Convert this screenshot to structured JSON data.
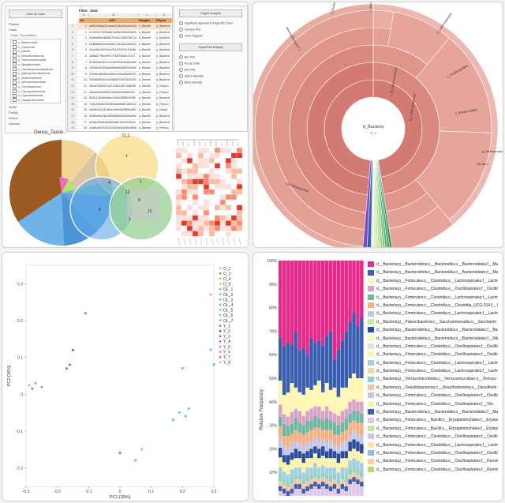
{
  "panel1": {
    "tree": {
      "view_all_label": "View All Data",
      "nodes_top": [
        "Phylum",
        "Class"
      ],
      "subhdr": [
        "Class",
        "TaxonName"
      ],
      "taxa": [
        "c_Bacteroidia",
        "c_Clostridia",
        "c_Bacilli",
        "c_Desulfovibrionia",
        "c_Saccharimonadia",
        "c_Negativicutes",
        "c_Gammaproteobacteria",
        "c_Alphaproteobacteria",
        "c_Actinobacteria",
        "c_Verrucomicrobiae",
        "c_Coriobacteriia",
        "c_Campylobacteria",
        "c_Cyanobacteriia",
        "c_Vampirivibrionia"
      ],
      "nodes_bottom": [
        "Order",
        "Family",
        "Genus",
        "Species"
      ]
    },
    "table": {
      "filter_label": "Filter: 1542",
      "col_letters": [
        "A",
        "B",
        "C",
        "D"
      ],
      "headers": [
        "ID",
        "ASV",
        "Kingdo",
        "Phylur"
      ],
      "rows": [
        {
          "rn": "2",
          "id": "1",
          "asv": "ad99184fba2f7aaee224b400c9c442b8",
          "kg": "d_Bacteri",
          "ph": "p_Bacteroi"
        },
        {
          "rn": "3",
          "id": "2",
          "asv": "c12624375264d015e66b2585d94b9581e7",
          "kg": "d_Bacteri",
          "ph": "p_Bacteroi"
        },
        {
          "rn": "4",
          "id": "3",
          "asv": "ed3eb69e2d8b8072e54223597a571a16d",
          "kg": "d_Bacteri",
          "ph": "p_Bacteroi"
        },
        {
          "rn": "5",
          "id": "4",
          "asv": "b0db8b6e5c93cb6674c314a13d3d0190",
          "kg": "d_Bacteri",
          "ph": "p_Bacteroi"
        },
        {
          "rn": "6",
          "id": "5",
          "asv": "2fcce5b14675eca70147b32241f1b8b",
          "kg": "d_Bacteri",
          "ph": "p_Bacteroi"
        },
        {
          "rn": "7",
          "id": "6",
          "asv": "2d8fa577fbcc9f7c7734f7084fb17e17",
          "kg": "d_Bacteri",
          "ph": "p_Bacteroi"
        },
        {
          "rn": "8",
          "id": "7",
          "asv": "67863a4e067e412d0295ce8b8b3d0b4",
          "kg": "d_Bacteri",
          "ph": "p_Bacteroi"
        },
        {
          "rn": "9",
          "id": "8",
          "asv": "153b0e5c226aa095b0e69d8292c6d93",
          "kg": "d_Bacteri",
          "ph": "p_Bacteroi"
        },
        {
          "rn": "10",
          "id": "9",
          "asv": "29e99c68bff0b4d5b7b433c6f4df5752",
          "kg": "d_Bacteri",
          "ph": "p_Bacteroi"
        },
        {
          "rn": "11",
          "id": "10",
          "asv": "04f2f6656c87dc9088067b9792d2493",
          "kg": "d_Bacteri",
          "ph": "p_Bacteroi"
        },
        {
          "rn": "12",
          "id": "11",
          "asv": "96cd478d0a71c67436112de73d5cf0f",
          "kg": "d_Bacteri",
          "ph": "p_Firmicu"
        },
        {
          "rn": "13",
          "id": "12",
          "asv": "ddda3a0450bf9a7d5a30a30f889c64",
          "kg": "d_Bacteri",
          "ph": "p_Firmicu"
        },
        {
          "rn": "14",
          "id": "13",
          "asv": "803f1195db2b8ee7dd3b1f8ff59349f6",
          "kg": "d_Bacteri",
          "ph": "p_Bacteroi"
        },
        {
          "rn": "15",
          "id": "14",
          "asv": "7c8cc00b5b225350d6db6d6c1f5f0c22",
          "kg": "d_Bacteri",
          "ph": "p_Firmicu"
        },
        {
          "rn": "16",
          "id": "15",
          "asv": "c6bf52d21315f6ec49fd4fa29f89bdf62",
          "kg": "d_Bacteri",
          "ph": "p_Desulf"
        },
        {
          "rn": "17",
          "id": "16",
          "asv": "9d36ed9a78b7835998f5d2b9e0dd9ec4",
          "kg": "d_Bacteri",
          "ph": "p_Bacteroi"
        },
        {
          "rn": "18",
          "id": "17",
          "asv": "5eafb43fb8b4b0ff0fdd87182ce982a9",
          "kg": "d_Bacteri",
          "ph": "p_Bacteroi"
        },
        {
          "rn": "19",
          "id": "18",
          "asv": "3cfa5cdef71543220025e5c4f38c5b6b",
          "kg": "d_Bacteri",
          "ph": "p_Firmicu"
        },
        {
          "rn": "20",
          "id": "19",
          "asv": "dc8887533bf3805de651f8007b8fa7bf9",
          "kg": "d_Bacteri",
          "ph": "p_Verruco"
        }
      ]
    },
    "buttons": {
      "edgeR": "EdgeR Analysis",
      "opts": [
        "Significant Bacteria in Kingd Pie Chart",
        "Volcano Plot",
        "Venn Diagram"
      ],
      "graph": "Graph/Plot Analysis",
      "opts2": [
        "Bar Plot",
        "Krona Chart",
        "Box Plot",
        "Alpha Diversity",
        "Beta Diversity"
      ]
    },
    "genus_title": "Genus_Taxon",
    "venn": {
      "set_labels": [
        "O_1",
        "OL_1",
        "Y_1"
      ],
      "numbers": [
        "1",
        "4",
        "1",
        "12",
        "9",
        "5",
        "1",
        "13"
      ]
    }
  },
  "panel2": {
    "center_label": "d_Bacteria",
    "center_value": "O_1",
    "labels": [
      "c_Clostridia",
      "c_Bacteroidia",
      "o_Lachnospirales",
      "o_Oscillospirales",
      "o_Bacteroidales",
      "f_Lachnospiraceae",
      "f_Muribaculaceae",
      "f_Ruminococcaceae",
      "g_Lachnospiraceae",
      "g_Muribaculaceae",
      "g_Bacteroides",
      "c_Bacilli"
    ],
    "outer_note": "16 more"
  },
  "chart_data": [
    {
      "type": "scatter",
      "xlabel": "PC1 [39%]",
      "ylabel": "PC2 [16%]",
      "xlim": [
        -0.3,
        0.3
      ],
      "ylim": [
        -0.25,
        0.35
      ],
      "xticks": [
        "-0.3",
        "-0.2",
        "-0.1",
        "0",
        "0.1",
        "0.2",
        "0.3"
      ],
      "yticks": [
        "0.3",
        "0.2",
        "0.1",
        "0",
        "-0.1",
        "-0.2"
      ],
      "series": [
        {
          "name": "O_1",
          "color": "#f4a582",
          "marker": "tri",
          "points": [
            [
              0.29,
              0.27
            ]
          ]
        },
        {
          "name": "O_3",
          "color": "#d6604d",
          "marker": "tri",
          "points": [
            [
              0.0,
              -0.16
            ]
          ]
        },
        {
          "name": "O_4",
          "color": "#e08d5c",
          "marker": "tri",
          "points": [
            [
              0.05,
              -0.18
            ]
          ]
        },
        {
          "name": "O_5",
          "color": "#f4a582",
          "marker": "tri",
          "points": [
            [
              0.07,
              -0.15
            ]
          ]
        },
        {
          "name": "OL_1",
          "color": "#66c2a5",
          "marker": "tri",
          "points": [
            [
              0.2,
              0.07
            ]
          ]
        },
        {
          "name": "OL_2",
          "color": "#66c2a5",
          "marker": "tri",
          "points": [
            [
              0.19,
              -0.05
            ]
          ]
        },
        {
          "name": "OL_3",
          "color": "#66c2a5",
          "marker": "tri",
          "points": [
            [
              0.21,
              -0.06
            ]
          ]
        },
        {
          "name": "OL_4",
          "color": "#66c2a5",
          "marker": "tri",
          "points": [
            [
              0.22,
              -0.04
            ]
          ]
        },
        {
          "name": "OL_5",
          "color": "#66c2a5",
          "marker": "tri",
          "points": [
            [
              0.17,
              -0.07
            ]
          ]
        },
        {
          "name": "OL_6",
          "color": "#66c2a5",
          "marker": "tri",
          "points": [
            [
              0.29,
              0.12
            ]
          ]
        },
        {
          "name": "OL_7",
          "color": "#66c2a5",
          "marker": "tri",
          "points": [
            [
              0.3,
              0.08
            ]
          ]
        },
        {
          "name": "Y_1",
          "color": "#7b68ee",
          "marker": "dot",
          "points": [
            [
              -0.11,
              0.22
            ]
          ]
        },
        {
          "name": "Y_2",
          "color": "#3366cc",
          "marker": "dot",
          "points": [
            [
              -0.15,
              0.12
            ]
          ]
        },
        {
          "name": "Y_3",
          "color": "#cc33cc",
          "marker": "dot",
          "points": [
            [
              -0.16,
              0.08
            ]
          ]
        },
        {
          "name": "Y_4",
          "color": "#6666ff",
          "marker": "dot",
          "points": [
            [
              -0.17,
              0.07
            ]
          ]
        },
        {
          "name": "Y_5",
          "color": "#cc66cc",
          "marker": "dot",
          "points": [
            [
              -0.25,
              0.02
            ]
          ]
        },
        {
          "name": "Y_6",
          "color": "#ff66cc",
          "marker": "dot",
          "points": [
            [
              -0.27,
              0.03
            ]
          ]
        },
        {
          "name": "Y_7",
          "color": "#9966cc",
          "marker": "dot",
          "points": [
            [
              -0.28,
              0.015
            ]
          ]
        },
        {
          "name": "Y_8",
          "color": "#cc99ff",
          "marker": "dot",
          "points": [
            [
              -0.29,
              0.025
            ]
          ]
        }
      ]
    },
    {
      "type": "bar",
      "stacked": true,
      "ylabel": "Relative Frequency",
      "ylim": [
        0,
        100
      ],
      "yticks": [
        "100%",
        "90%",
        "80%",
        "70%",
        "60%",
        "50%",
        "40%",
        "30%",
        "20%",
        "10%"
      ],
      "legend": [
        {
          "label": "d__Bacteria;p__Bacteroidota;c__Bacteroidia;o__Bacteroidales;f__Mu",
          "color": "#e7298a"
        },
        {
          "label": "d__Bacteria;p__Bacteroidota;c__Bacteroidia;o__Bacteroidales;f__Mu",
          "color": "#3a5fb0"
        },
        {
          "label": "d__Bacteria;p__Firmicutes;c__Clostridia;o__Lachnospirales;f__Lachn",
          "color": "#fff6b0"
        },
        {
          "label": "d__Bacteria;p__Firmicutes;c__Clostridia;o__Oscillospirales;f__Oscillo",
          "color": "#d9a3c9"
        },
        {
          "label": "d__Bacteria;p__Firmicutes;c__Clostridia;o__Lachnospirales;f__Lachn",
          "color": "#6db8a0"
        },
        {
          "label": "d__Bacteria;p__Firmicutes;c__Clostridia;o__Clostridia_UCG-014;f__C",
          "color": "#f4b183"
        },
        {
          "label": "d__Bacteria;p__Firmicutes;c__Clostridia;o__Lachnospirales;f__Lachn",
          "color": "#c5c5e6"
        },
        {
          "label": "d__Bacteria;p__Patescibacteria;c__Saccharimonadia;o__Saccharim",
          "color": "#c7e9a0"
        },
        {
          "label": "d__Bacteria;p__Bacteroidota;c__Bacteroidia;o__Bacteroidales;f__Bac",
          "color": "#2a4d9c"
        },
        {
          "label": "d__Bacteria;p__Bacteroidota;c__Bacteroidia;o__Bacteroidales;f__Rik",
          "color": "#fff6b0"
        },
        {
          "label": "d__Bacteria;p__Firmicutes;c__Clostridia;o__Oscillospirales;f__Oscillo",
          "color": "#e0e0e0"
        },
        {
          "label": "d__Bacteria;p__Firmicutes;c__Clostridia;o__Oscillospirales;f__Oscillo",
          "color": "#fbf3a6"
        },
        {
          "label": "d__Bacteria;p__Firmicutes;c__Clostridia;o__Lachnospirales;f__Lachn",
          "color": "#a6cee3"
        },
        {
          "label": "d__Bacteria;p__Firmicutes;c__Clostridia;o__Lachnospirales;f__Lachn",
          "color": "#fdd49e"
        },
        {
          "label": "d__Bacteria;p__Verrucomicrobiota;c__Verrucomicrobiae;o__Verruco",
          "color": "#8dd3c7"
        },
        {
          "label": "d__Bacteria;p__Desulfobacterota;c__Desulfovibrionia;o__Desulfovib",
          "color": "#f7c6a0"
        },
        {
          "label": "d__Bacteria;p__Firmicutes;c__Clostridia;o__Oscillospirales;f__Oscillo",
          "color": "#c6c6e8"
        },
        {
          "label": "d__Bacteria;p__Firmicutes;c__Clostridia;o__Oscillospirales;f__Ten",
          "color": "#fff2ae"
        },
        {
          "label": "d__Bacteria;p__Bacteroidota;c__Bacteroidia;o__Bacteroidales;f__Mu",
          "color": "#3f5fb4"
        },
        {
          "label": "d__Bacteria;p__Firmicutes;c__Bacilli;o__Erysipelotrichales;f__Erysipe",
          "color": "#e0c7e8"
        },
        {
          "label": "d__Bacteria;p__Firmicutes;c__Bacilli;o__Erysipelotrichales;f__Erysipe",
          "color": "#c2e39a"
        },
        {
          "label": "d__Bacteria;p__Firmicutes;c__Clostridia;o__Oscillospirales;f__Oscillo",
          "color": "#c8c8e6"
        },
        {
          "label": "d__Bacteria;p__Firmicutes;c__Clostridia;o__Lachnospirales;f__Lachn",
          "color": "#fee8a0"
        },
        {
          "label": "d__Bacteria;p__Firmicutes;c__Clostridia;o__Oscillospirales;f__Oscillo",
          "color": "#8fbfd8"
        },
        {
          "label": "d__Bacteria;p__Firmicutes;c__Clostridia;o__Oscillospirales;f__Rumin",
          "color": "#fcd0a4"
        },
        {
          "label": "d__Bacteria;p__Firmicutes;c__Clostridia;o__Oscillospirales;f__Rumin",
          "color": "#b3de69"
        }
      ],
      "segments": [
        {
          "color": "#e7298a",
          "values": [
            32,
            36,
            34,
            35,
            30,
            38,
            37,
            40,
            33,
            35,
            34,
            36,
            32,
            30,
            42,
            38,
            34,
            30,
            26,
            22,
            28,
            24
          ]
        },
        {
          "color": "#3a5fb0",
          "values": [
            18,
            20,
            21,
            16,
            24,
            18,
            20,
            14,
            22,
            18,
            17,
            20,
            20,
            25,
            12,
            20,
            20,
            24,
            24,
            26,
            22,
            26
          ]
        },
        {
          "color": "#fff6b0",
          "values": [
            10,
            8,
            10,
            12,
            9,
            8,
            9,
            10,
            8,
            9,
            11,
            8,
            10,
            9,
            11,
            8,
            10,
            9,
            10,
            11,
            10,
            10
          ]
        },
        {
          "color": "#d9a3c9",
          "values": [
            5,
            4,
            4,
            5,
            4,
            5,
            4,
            4,
            5,
            4,
            5,
            4,
            5,
            4,
            4,
            4,
            5,
            4,
            5,
            5,
            4,
            5
          ]
        },
        {
          "color": "#6db8a0",
          "values": [
            4,
            5,
            4,
            4,
            5,
            4,
            4,
            5,
            4,
            5,
            4,
            4,
            5,
            4,
            5,
            4,
            4,
            5,
            4,
            4,
            5,
            4
          ]
        },
        {
          "color": "#f4b183",
          "values": [
            5,
            4,
            5,
            4,
            5,
            4,
            5,
            4,
            5,
            4,
            5,
            4,
            5,
            4,
            4,
            5,
            4,
            5,
            5,
            4,
            5,
            5
          ]
        },
        {
          "color": "#c5c5e6",
          "values": [
            4,
            4,
            3,
            4,
            3,
            4,
            3,
            4,
            3,
            4,
            4,
            3,
            4,
            4,
            3,
            3,
            4,
            4,
            3,
            4,
            3,
            4
          ]
        },
        {
          "color": "#2a4d9c",
          "values": [
            4,
            3,
            4,
            3,
            4,
            3,
            4,
            3,
            4,
            3,
            4,
            4,
            3,
            4,
            3,
            4,
            3,
            3,
            4,
            4,
            4,
            4
          ]
        },
        {
          "color": "#fbf3a6",
          "values": [
            4,
            4,
            4,
            4,
            4,
            4,
            4,
            4,
            4,
            4,
            4,
            4,
            4,
            4,
            4,
            4,
            4,
            4,
            4,
            4,
            4,
            4
          ]
        },
        {
          "color": "#a6cee3",
          "values": [
            3,
            3,
            3,
            3,
            3,
            3,
            3,
            3,
            3,
            3,
            3,
            3,
            3,
            3,
            3,
            3,
            3,
            3,
            3,
            3,
            3,
            3
          ]
        },
        {
          "color": "#8dd3c7",
          "values": [
            3,
            2,
            2,
            3,
            2,
            2,
            2,
            3,
            2,
            3,
            2,
            2,
            2,
            3,
            2,
            2,
            2,
            3,
            3,
            3,
            3,
            3
          ]
        },
        {
          "color": "#f7c6a0",
          "values": [
            2,
            2,
            2,
            2,
            2,
            2,
            2,
            2,
            2,
            2,
            2,
            2,
            2,
            2,
            2,
            2,
            2,
            2,
            2,
            2,
            2,
            2
          ]
        },
        {
          "color": "#3f5fb4",
          "values": [
            2,
            2,
            2,
            2,
            2,
            2,
            2,
            2,
            2,
            2,
            2,
            2,
            2,
            2,
            2,
            2,
            2,
            2,
            2,
            2,
            2,
            2
          ]
        },
        {
          "color": "#e0c7e8",
          "values": [
            2,
            1,
            0,
            1,
            3,
            3,
            1,
            2,
            3,
            4,
            3,
            4,
            3,
            2,
            3,
            1,
            3,
            2,
            5,
            6,
            5,
            4
          ]
        }
      ]
    }
  ]
}
